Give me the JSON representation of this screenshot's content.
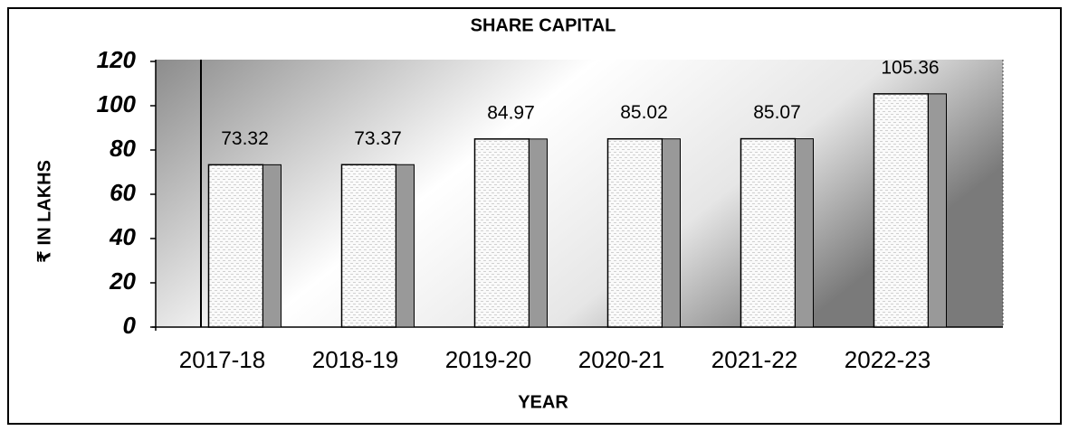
{
  "chart_data": {
    "type": "bar",
    "title": "SHARE CAPITAL",
    "x_label": "YEAR",
    "y_label": "₹ IN LAKHS",
    "categories": [
      "2017-18",
      "2018-19",
      "2019-20",
      "2020-21",
      "2021-22",
      "2022-23"
    ],
    "values": [
      73.32,
      73.37,
      84.97,
      85.02,
      85.07,
      105.36
    ],
    "color": "#fafafa",
    "ylim": [
      0,
      120
    ],
    "yticks": [
      0,
      20,
      40,
      60,
      80,
      100,
      120
    ],
    "grid": false
  }
}
